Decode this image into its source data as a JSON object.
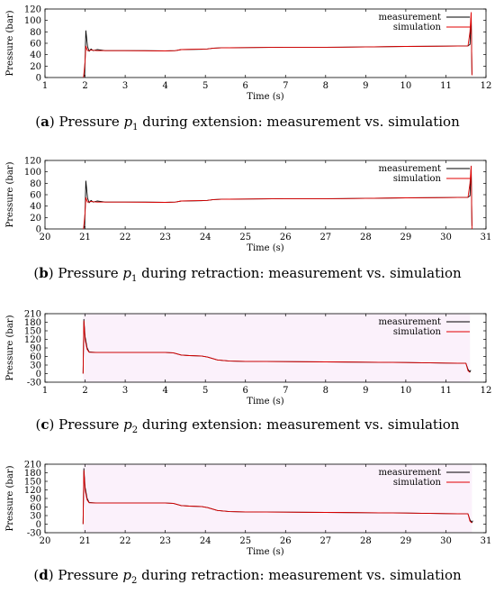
{
  "colors": {
    "measurement": "#000000",
    "simulation": "#e00000",
    "band": "#f4d6f4"
  },
  "chart_data": [
    {
      "type": "line",
      "caption_tag": "a",
      "caption_pre": "Pressure ",
      "caption_var": "p",
      "caption_sub": "1",
      "caption_post": " during extension: measurement vs. simulation",
      "xlabel": "Time (s)",
      "ylabel": "Pressure (bar)",
      "xlim": [
        1,
        12
      ],
      "ylim": [
        0,
        120
      ],
      "xticks": [
        1,
        2,
        3,
        4,
        5,
        6,
        7,
        8,
        9,
        10,
        11,
        12
      ],
      "yticks": [
        0,
        20,
        40,
        60,
        80,
        100,
        120
      ],
      "legend": "top-right",
      "series": [
        {
          "name": "measurement",
          "points": [
            [
              1.96,
              0
            ],
            [
              1.99,
              5
            ],
            [
              2.02,
              82
            ],
            [
              2.06,
              55
            ],
            [
              2.1,
              46
            ],
            [
              2.15,
              50
            ],
            [
              2.2,
              47
            ],
            [
              2.3,
              49
            ],
            [
              2.5,
              47
            ],
            [
              3,
              47
            ],
            [
              3.5,
              47
            ],
            [
              4,
              46.5
            ],
            [
              4.25,
              47
            ],
            [
              4.4,
              49
            ],
            [
              4.9,
              49.5
            ],
            [
              5.05,
              50
            ],
            [
              5.2,
              51.5
            ],
            [
              5.4,
              52
            ],
            [
              6,
              52.5
            ],
            [
              7,
              53
            ],
            [
              8,
              53
            ],
            [
              9,
              53.5
            ],
            [
              10,
              54.5
            ],
            [
              11,
              55
            ],
            [
              11.55,
              55.5
            ],
            [
              11.6,
              58
            ],
            [
              11.63,
              110
            ],
            [
              11.65,
              5
            ]
          ]
        },
        {
          "name": "simulation",
          "points": [
            [
              1.96,
              0
            ],
            [
              2.0,
              28
            ],
            [
              2.02,
              55
            ],
            [
              2.06,
              47
            ],
            [
              2.15,
              48
            ],
            [
              2.3,
              47
            ],
            [
              3,
              47
            ],
            [
              4,
              46.5
            ],
            [
              4.25,
              47
            ],
            [
              4.4,
              49
            ],
            [
              5.05,
              50
            ],
            [
              5.2,
              51.5
            ],
            [
              5.4,
              52
            ],
            [
              6,
              52.5
            ],
            [
              7,
              53
            ],
            [
              8,
              53
            ],
            [
              9,
              53.5
            ],
            [
              10,
              54.5
            ],
            [
              11,
              55
            ],
            [
              11.55,
              55.5
            ],
            [
              11.6,
              80
            ],
            [
              11.63,
              114
            ],
            [
              11.65,
              4
            ]
          ]
        }
      ]
    },
    {
      "type": "line",
      "caption_tag": "b",
      "caption_pre": "Pressure ",
      "caption_var": "p",
      "caption_sub": "1",
      "caption_post": " during retraction: measurement vs. simulation",
      "xlabel": "Time (s)",
      "ylabel": "Pressure (bar)",
      "xlim": [
        20,
        31
      ],
      "ylim": [
        0,
        120
      ],
      "xticks": [
        20,
        21,
        22,
        23,
        24,
        25,
        26,
        27,
        28,
        29,
        30,
        31
      ],
      "yticks": [
        0,
        20,
        40,
        60,
        80,
        100,
        120
      ],
      "legend": "top-right",
      "series": [
        {
          "name": "measurement",
          "points": [
            [
              20.96,
              0
            ],
            [
              20.99,
              5
            ],
            [
              21.02,
              84
            ],
            [
              21.06,
              55
            ],
            [
              21.1,
              46
            ],
            [
              21.15,
              50
            ],
            [
              21.2,
              47
            ],
            [
              21.3,
              49
            ],
            [
              21.5,
              47
            ],
            [
              22,
              47
            ],
            [
              22.5,
              47
            ],
            [
              23,
              46.5
            ],
            [
              23.25,
              47
            ],
            [
              23.4,
              49
            ],
            [
              23.9,
              49.5
            ],
            [
              24.05,
              50
            ],
            [
              24.2,
              51.5
            ],
            [
              24.4,
              52
            ],
            [
              25,
              52.5
            ],
            [
              26,
              53
            ],
            [
              27,
              53
            ],
            [
              28,
              53.5
            ],
            [
              29,
              54.5
            ],
            [
              30,
              55
            ],
            [
              30.55,
              55.5
            ],
            [
              30.6,
              58
            ],
            [
              30.63,
              110
            ],
            [
              30.65,
              5
            ]
          ]
        },
        {
          "name": "simulation",
          "points": [
            [
              20.96,
              0
            ],
            [
              21.0,
              28
            ],
            [
              21.02,
              55
            ],
            [
              21.06,
              47
            ],
            [
              21.15,
              48
            ],
            [
              21.3,
              47
            ],
            [
              22,
              47
            ],
            [
              23,
              46.5
            ],
            [
              23.25,
              47
            ],
            [
              23.4,
              49
            ],
            [
              24.05,
              50
            ],
            [
              24.2,
              51.5
            ],
            [
              24.4,
              52
            ],
            [
              25,
              52.5
            ],
            [
              26,
              53
            ],
            [
              27,
              53
            ],
            [
              28,
              53.5
            ],
            [
              29,
              54.5
            ],
            [
              30,
              55
            ],
            [
              30.55,
              55.5
            ],
            [
              30.6,
              80
            ],
            [
              30.63,
              110
            ],
            [
              30.65,
              0
            ]
          ]
        }
      ]
    },
    {
      "type": "line",
      "caption_tag": "c",
      "caption_pre": "Pressure ",
      "caption_var": "p",
      "caption_sub": "2",
      "caption_post": " during extension: measurement vs. simulation",
      "xlabel": "Time (s)",
      "ylabel": "Pressure (bar)",
      "xlim": [
        1,
        12
      ],
      "ylim": [
        -30,
        210
      ],
      "xticks": [
        1,
        2,
        3,
        4,
        5,
        6,
        7,
        8,
        9,
        10,
        11,
        12
      ],
      "yticks": [
        -30,
        0,
        30,
        60,
        90,
        120,
        150,
        180,
        210
      ],
      "legend": "top-right",
      "band_x": [
        1.95,
        11.6
      ],
      "series": [
        {
          "name": "measurement",
          "points": [
            [
              1.95,
              0
            ],
            [
              1.97,
              190
            ],
            [
              2.0,
              130
            ],
            [
              2.05,
              90
            ],
            [
              2.1,
              76
            ],
            [
              2.3,
              74
            ],
            [
              3,
              74
            ],
            [
              4,
              74
            ],
            [
              4.2,
              73
            ],
            [
              4.4,
              65
            ],
            [
              4.6,
              63
            ],
            [
              4.9,
              62
            ],
            [
              5.05,
              58
            ],
            [
              5.3,
              48
            ],
            [
              5.6,
              44
            ],
            [
              6,
              43
            ],
            [
              7,
              42
            ],
            [
              8,
              41
            ],
            [
              9,
              40
            ],
            [
              10,
              39
            ],
            [
              11,
              37
            ],
            [
              11.5,
              36
            ],
            [
              11.55,
              15
            ],
            [
              11.6,
              6
            ],
            [
              11.62,
              12
            ]
          ]
        },
        {
          "name": "simulation",
          "points": [
            [
              1.95,
              0
            ],
            [
              1.97,
              185
            ],
            [
              2.0,
              120
            ],
            [
              2.05,
              85
            ],
            [
              2.1,
              75
            ],
            [
              2.3,
              74
            ],
            [
              3,
              74
            ],
            [
              4,
              74
            ],
            [
              4.2,
              73
            ],
            [
              4.4,
              65
            ],
            [
              4.6,
              63
            ],
            [
              4.9,
              62
            ],
            [
              5.05,
              58
            ],
            [
              5.3,
              48
            ],
            [
              5.6,
              44
            ],
            [
              6,
              43
            ],
            [
              7,
              42
            ],
            [
              8,
              41
            ],
            [
              9,
              40
            ],
            [
              10,
              39
            ],
            [
              11,
              37
            ],
            [
              11.5,
              36
            ],
            [
              11.55,
              10
            ],
            [
              11.6,
              4
            ]
          ]
        }
      ]
    },
    {
      "type": "line",
      "caption_tag": "d",
      "caption_pre": "Pressure ",
      "caption_var": "p",
      "caption_sub": "2",
      "caption_post": " during retraction: measurement vs. simulation",
      "xlabel": "Time (s)",
      "ylabel": "Pressure (bar)",
      "xlim": [
        20,
        31
      ],
      "ylim": [
        -30,
        210
      ],
      "xticks": [
        20,
        21,
        22,
        23,
        24,
        25,
        26,
        27,
        28,
        29,
        30,
        31
      ],
      "yticks": [
        -30,
        0,
        30,
        60,
        90,
        120,
        150,
        180,
        210
      ],
      "legend": "top-right",
      "band_x": [
        20.95,
        30.65
      ],
      "series": [
        {
          "name": "measurement",
          "points": [
            [
              20.95,
              0
            ],
            [
              20.97,
              195
            ],
            [
              21.0,
              130
            ],
            [
              21.05,
              90
            ],
            [
              21.1,
              76
            ],
            [
              21.3,
              74
            ],
            [
              22,
              74
            ],
            [
              23,
              74
            ],
            [
              23.2,
              73
            ],
            [
              23.4,
              65
            ],
            [
              23.6,
              63
            ],
            [
              23.9,
              62
            ],
            [
              24.05,
              58
            ],
            [
              24.3,
              48
            ],
            [
              24.6,
              44
            ],
            [
              25,
              43
            ],
            [
              26,
              42
            ],
            [
              27,
              41
            ],
            [
              28,
              40
            ],
            [
              29,
              39
            ],
            [
              30,
              37
            ],
            [
              30.55,
              36
            ],
            [
              30.6,
              15
            ],
            [
              30.65,
              6
            ],
            [
              30.67,
              12
            ]
          ]
        },
        {
          "name": "simulation",
          "points": [
            [
              20.95,
              0
            ],
            [
              20.97,
              188
            ],
            [
              21.0,
              120
            ],
            [
              21.05,
              85
            ],
            [
              21.1,
              75
            ],
            [
              21.3,
              74
            ],
            [
              22,
              74
            ],
            [
              23,
              74
            ],
            [
              23.2,
              73
            ],
            [
              23.4,
              65
            ],
            [
              23.6,
              63
            ],
            [
              23.9,
              62
            ],
            [
              24.05,
              58
            ],
            [
              24.3,
              48
            ],
            [
              24.6,
              44
            ],
            [
              25,
              43
            ],
            [
              26,
              42
            ],
            [
              27,
              41
            ],
            [
              28,
              40
            ],
            [
              29,
              39
            ],
            [
              30,
              37
            ],
            [
              30.55,
              36
            ],
            [
              30.6,
              10
            ],
            [
              30.65,
              4
            ]
          ]
        }
      ]
    }
  ]
}
